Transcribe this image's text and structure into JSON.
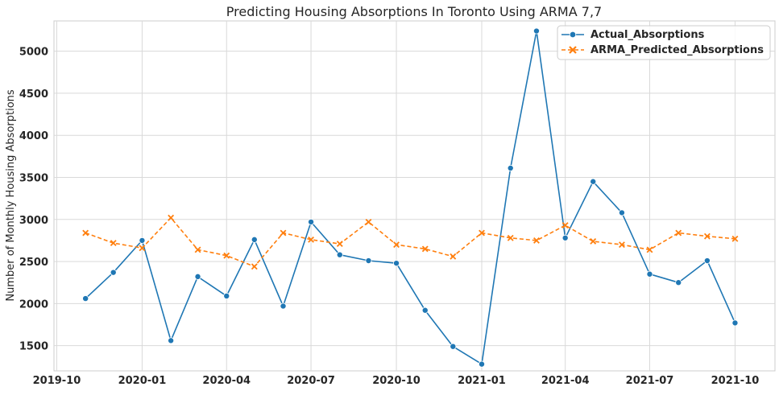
{
  "chart_data": {
    "type": "line",
    "title": "Predicting Housing Absorptions In Toronto Using ARMA 7,7",
    "xlabel": "",
    "ylabel": "Number of Monthly Housing Absorptions",
    "x_ticks": [
      "2019-10",
      "2020-01",
      "2020-04",
      "2020-07",
      "2020-10",
      "2021-01",
      "2021-04",
      "2021-07",
      "2021-10"
    ],
    "y_ticks": [
      1500,
      2000,
      2500,
      3000,
      3500,
      4000,
      4500,
      5000
    ],
    "xlim": [
      "2019-09-28",
      "2021-11-13"
    ],
    "ylim": [
      1200,
      5360
    ],
    "grid": true,
    "legend_position": "top-right",
    "x": [
      "2019-11-01",
      "2019-12-01",
      "2020-01-01",
      "2020-02-01",
      "2020-03-01",
      "2020-04-01",
      "2020-05-01",
      "2020-06-01",
      "2020-07-01",
      "2020-08-01",
      "2020-09-01",
      "2020-10-01",
      "2020-11-01",
      "2020-12-01",
      "2021-01-01",
      "2021-02-01",
      "2021-03-01",
      "2021-04-01",
      "2021-05-01",
      "2021-06-01",
      "2021-07-01",
      "2021-08-01",
      "2021-09-01",
      "2021-10-01"
    ],
    "series": [
      {
        "name": "Actual_Absorptions",
        "color": "#1f77b4",
        "marker": "circle",
        "line_style": "solid",
        "values": [
          2060,
          2370,
          2750,
          1560,
          2320,
          2090,
          2760,
          1970,
          2970,
          2580,
          2510,
          2480,
          1920,
          1490,
          1280,
          3610,
          5240,
          2780,
          3450,
          3080,
          2350,
          2250,
          2510,
          1770
        ]
      },
      {
        "name": "ARMA_Predicted_Absorptions",
        "color": "#ff7f0e",
        "marker": "x",
        "line_style": "dashed",
        "values": [
          2840,
          2720,
          2660,
          3020,
          2640,
          2570,
          2440,
          2840,
          2760,
          2710,
          2970,
          2700,
          2650,
          2560,
          2840,
          2780,
          2750,
          2930,
          2740,
          2700,
          2640,
          2840,
          2800,
          2770
        ]
      }
    ]
  }
}
